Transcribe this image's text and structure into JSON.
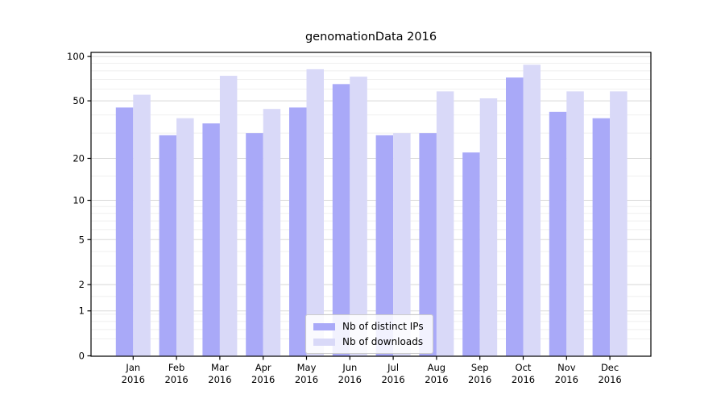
{
  "title": "genomationData 2016",
  "chart_data": {
    "type": "bar",
    "title": "genomationData 2016",
    "categories": [
      "Jan",
      "Feb",
      "Mar",
      "Apr",
      "May",
      "Jun",
      "Jul",
      "Aug",
      "Sep",
      "Oct",
      "Nov",
      "Dec"
    ],
    "category_year": "2016",
    "series": [
      {
        "name": "Nb of distinct IPs",
        "color": "#a9a9f8",
        "values": [
          45,
          29,
          35,
          30,
          45,
          65,
          29,
          30,
          22,
          72,
          42,
          38
        ]
      },
      {
        "name": "Nb of downloads",
        "color": "#d9d9f8",
        "values": [
          55,
          38,
          74,
          44,
          82,
          73,
          30,
          58,
          52,
          88,
          58,
          58
        ]
      }
    ],
    "xlabel": "",
    "ylabel": "",
    "yscale": "log1p",
    "ylim": [
      0,
      105
    ],
    "yticks": [
      0,
      1,
      2,
      5,
      10,
      20,
      50,
      100
    ],
    "yticks_minor": [
      0.3,
      0.5,
      0.7,
      0.9,
      1.5,
      3,
      4,
      6,
      7,
      8,
      9,
      15,
      30,
      40,
      60,
      70,
      80,
      90
    ],
    "grid": "on",
    "legend_position": "lower center"
  },
  "colors": {
    "background": "#ffffff",
    "major_grid": "#d8d8d8",
    "minor_grid": "#efefef",
    "spine": "#000000",
    "text": "#000000"
  }
}
